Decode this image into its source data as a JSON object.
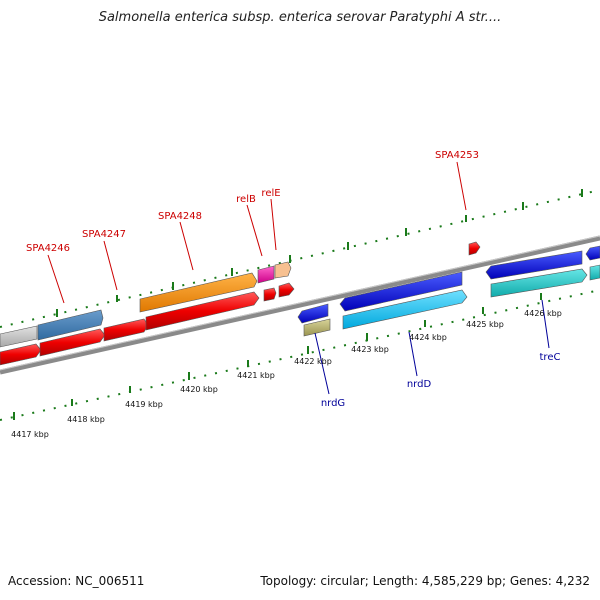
{
  "title": "Salmonella enterica subsp. enterica serovar Paratyphi A str....",
  "footer": {
    "accession": "Accession: NC_006511",
    "topology": "Topology: circular; Length: 4,585,229 bp; Genes: 4,232"
  },
  "colors": {
    "forward_label": "#cc0000",
    "reverse_label": "#000099",
    "tick": "#1a7a1a",
    "backbone": "#888888"
  },
  "ticks": [
    "4417 kbp",
    "4418 kbp",
    "4419 kbp",
    "4420 kbp",
    "4421 kbp",
    "4422 kbp",
    "4423 kbp",
    "4424 kbp",
    "4425 kbp",
    "4426 kbp"
  ],
  "gene_labels": {
    "spa4246": "SPA4246",
    "spa4247": "SPA4247",
    "spa4248": "SPA4248",
    "relb": "relB",
    "rele": "relE",
    "spa4253": "SPA4253",
    "nrdg": "nrdG",
    "nrdd": "nrdD",
    "trec": "treC"
  }
}
